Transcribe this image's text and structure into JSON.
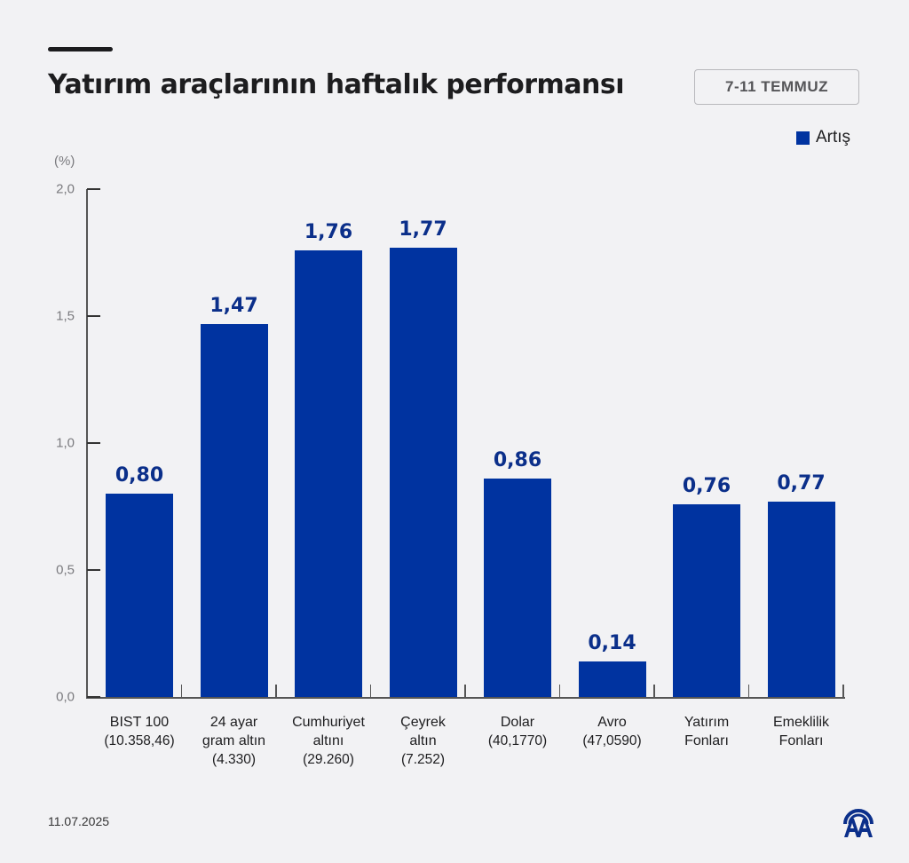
{
  "header": {
    "title": "Yatırım araçlarının haftalık performansı",
    "date_range": "7-11 TEMMUZ"
  },
  "legend": {
    "label": "Artış",
    "color": "#0033a0"
  },
  "footer": {
    "date": "11.07.2025",
    "logo": "aa-logo-icon"
  },
  "chart_data": {
    "type": "bar",
    "title": "Yatırım araçlarının haftalık performansı",
    "subtitle": "7-11 TEMMUZ",
    "xlabel": "",
    "ylabel": "(%)",
    "ylim": [
      0,
      2.0
    ],
    "yticks": [
      "0,0",
      "0,5",
      "1,0",
      "1,5",
      "2,0"
    ],
    "grid": false,
    "legend_position": "top-right",
    "categories": [
      "BIST 100 (10.358,46)",
      "24 ayar gram altın (4.330)",
      "Cumhuriyet altını (29.260)",
      "Çeyrek altın (7.252)",
      "Dolar (40,1770)",
      "Avro (47,0590)",
      "Yatırım Fonları",
      "Emeklilik Fonları"
    ],
    "series": [
      {
        "name": "Artış",
        "color": "#0033a0",
        "values": [
          0.8,
          1.47,
          1.76,
          1.77,
          0.86,
          0.14,
          0.76,
          0.77
        ]
      }
    ],
    "value_labels": [
      "0,80",
      "1,47",
      "1,76",
      "1,77",
      "0,86",
      "0,14",
      "0,76",
      "0,77"
    ],
    "category_lines": [
      [
        "BIST 100",
        "(10.358,46)"
      ],
      [
        "24 ayar",
        "gram altın",
        "(4.330)"
      ],
      [
        "Cumhuriyet",
        "altını",
        "(29.260)"
      ],
      [
        "Çeyrek",
        "altın",
        "(7.252)"
      ],
      [
        "Dolar",
        "(40,1770)"
      ],
      [
        "Avro",
        "(47,0590)"
      ],
      [
        "Yatırım",
        "Fonları"
      ],
      [
        "Emeklilik",
        "Fonları"
      ]
    ]
  }
}
